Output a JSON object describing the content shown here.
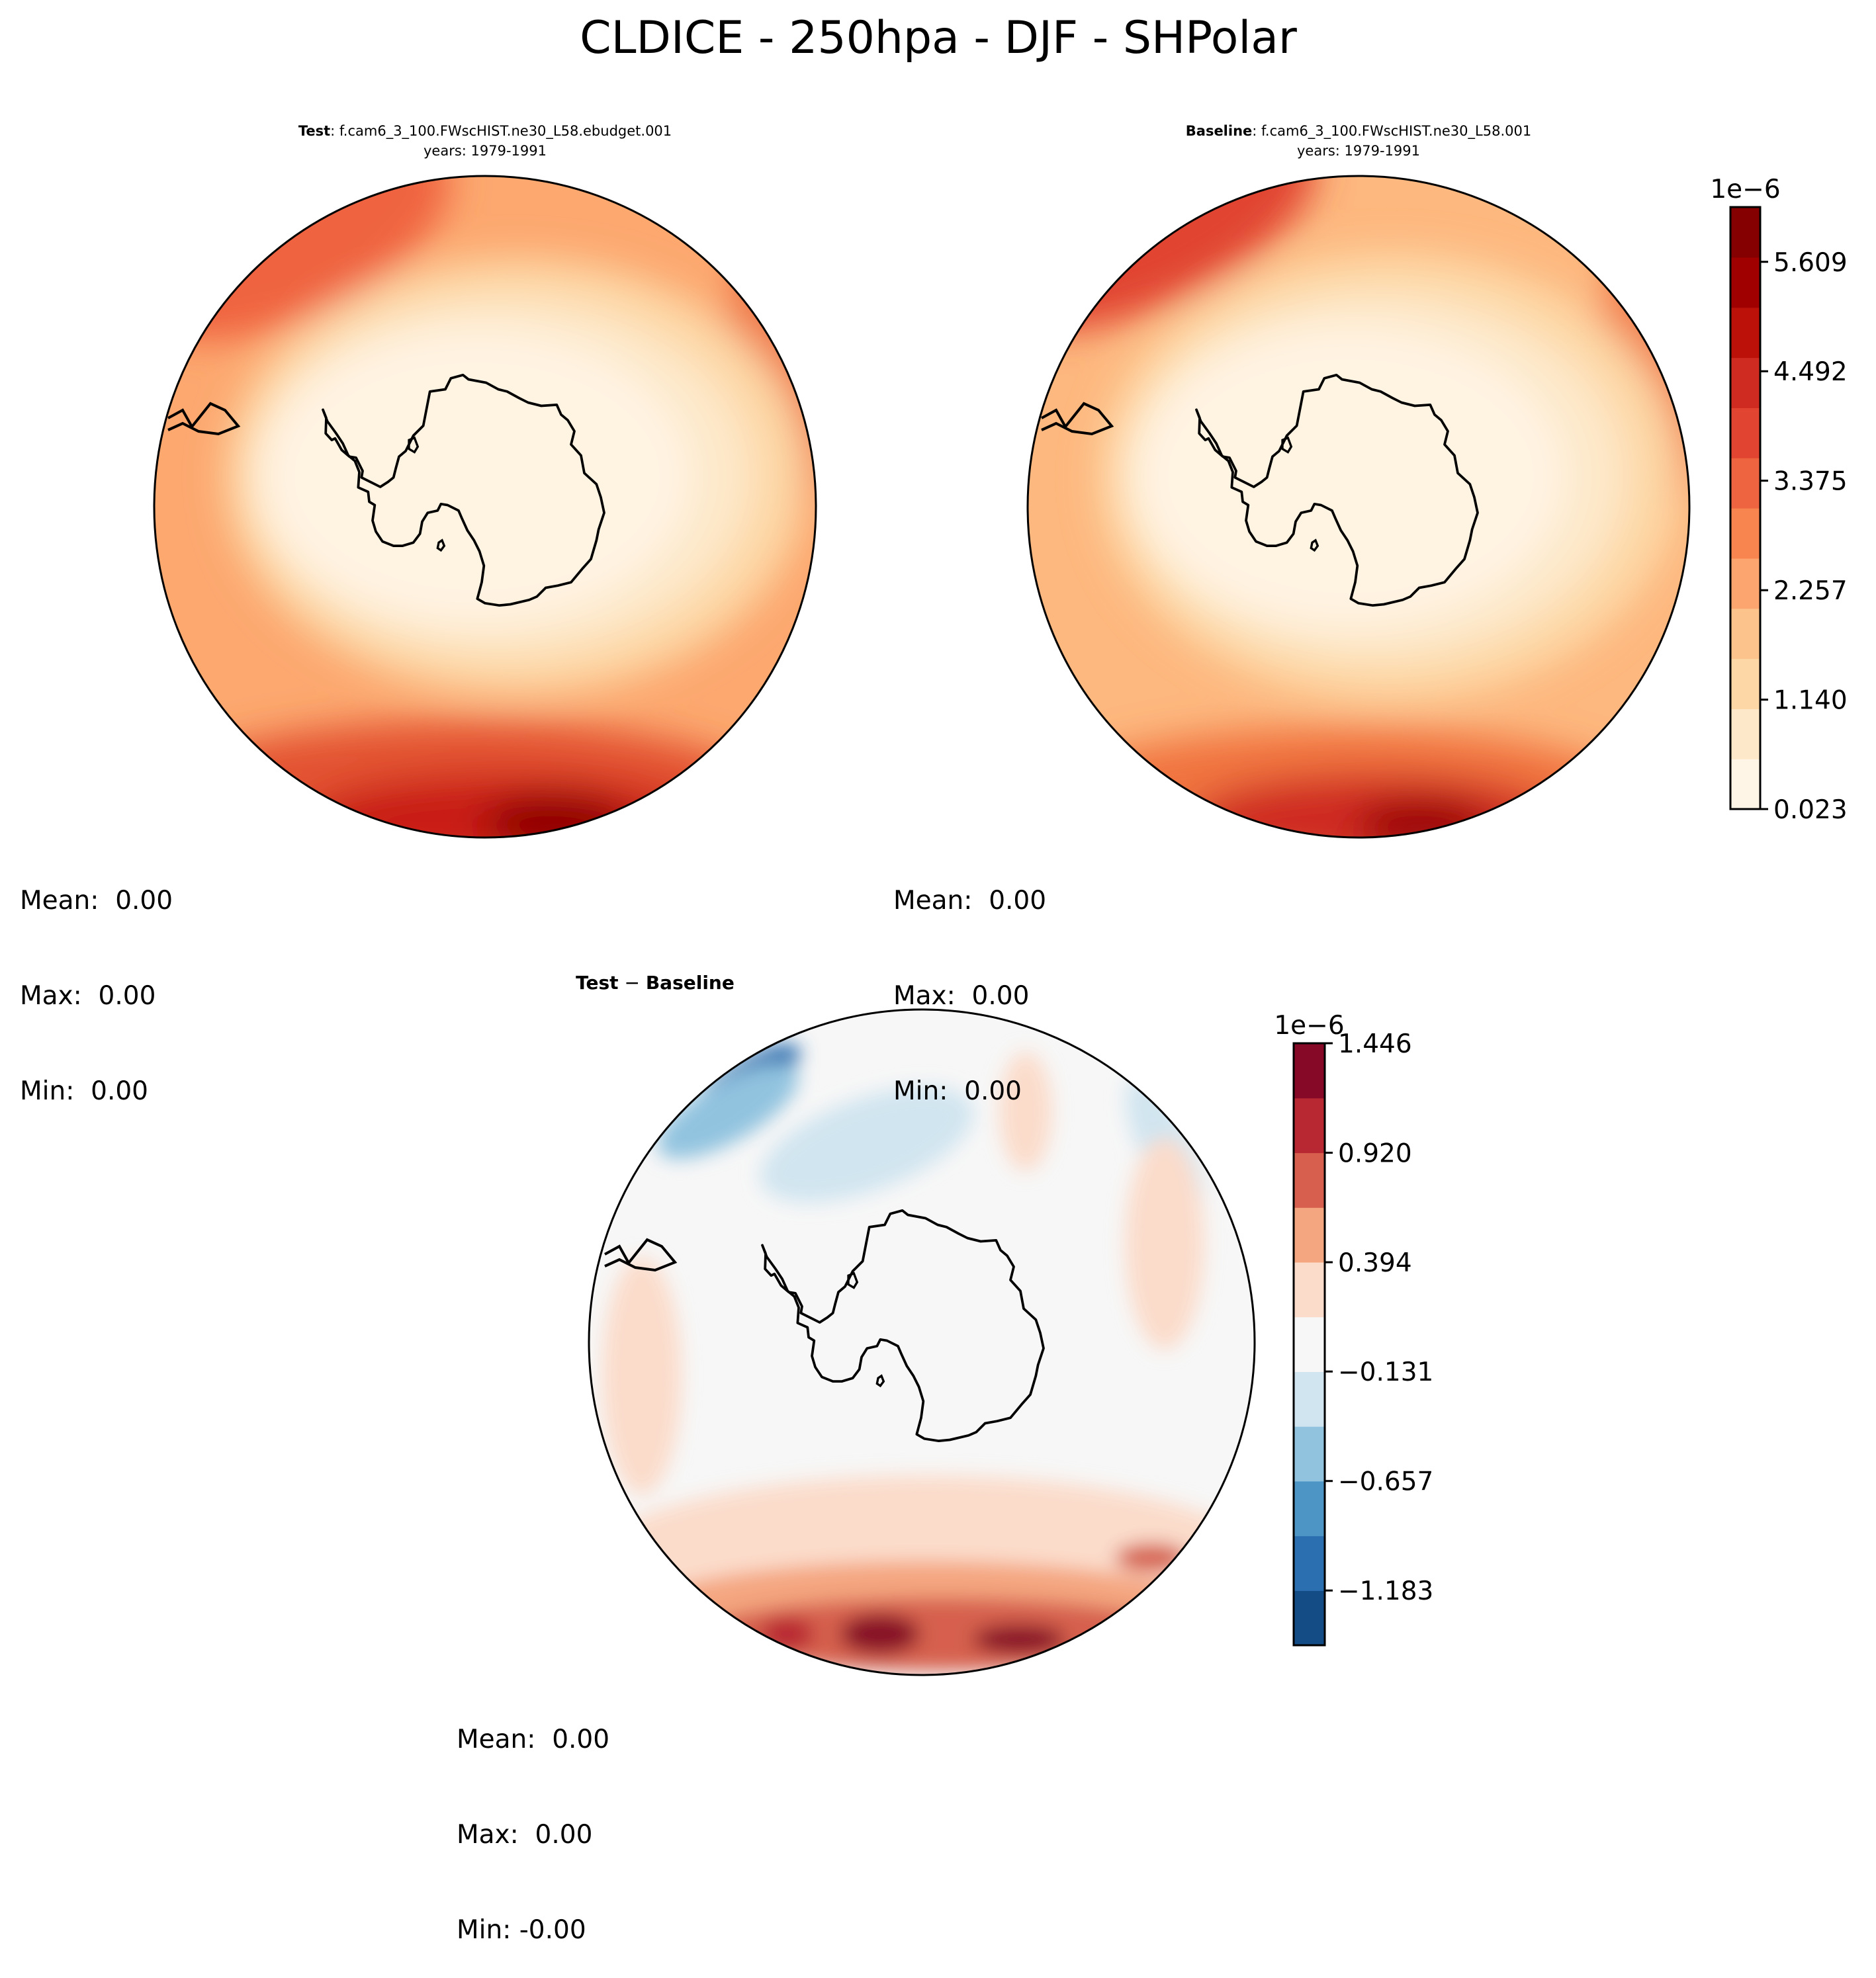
{
  "figure_title": "CLDICE - 250hpa - DJF - SHPolar",
  "chart_data": [
    {
      "type": "heatmap",
      "name": "test",
      "title_bold": "Test",
      "title_rest": ": f.cam6_3_100.FWscHIST.ne30_L58.ebudget.001",
      "subtitle": "years: 1979-1991",
      "projection": "south-polar-stereographic",
      "colormap": "OrRd",
      "stats": {
        "mean": "Mean:  0.00",
        "max": "Max:  0.00",
        "min": "Min:  0.00"
      },
      "field_description_levels": [
        0.023,
        0.582,
        1.14,
        1.699,
        2.257,
        2.816,
        3.375,
        3.933,
        4.492,
        5.05,
        5.609,
        6.168
      ]
    },
    {
      "type": "heatmap",
      "name": "baseline",
      "title_bold": "Baseline",
      "title_rest": ": f.cam6_3_100.FWscHIST.ne30_L58.001",
      "subtitle": "years: 1979-1991",
      "projection": "south-polar-stereographic",
      "colormap": "OrRd",
      "stats": {
        "mean": "Mean:  0.00",
        "max": "Max:  0.00",
        "min": "Min:  0.00"
      },
      "colorbar": {
        "exponent_label": "1e−6",
        "ticks": [
          "0.023",
          "1.140",
          "2.257",
          "3.375",
          "4.492",
          "5.609"
        ],
        "range": [
          0.023,
          6.168
        ],
        "colors": [
          "#fff5e6",
          "#fde8c9",
          "#fdd7a5",
          "#fdc38d",
          "#fca56e",
          "#f8844f",
          "#ef6440",
          "#e14531",
          "#cf2b20",
          "#bb1108",
          "#a00000",
          "#850000"
        ]
      }
    },
    {
      "type": "heatmap",
      "name": "difference",
      "title_bold": "Test",
      "title_sep": " − ",
      "title_bold2": "Baseline",
      "projection": "south-polar-stereographic",
      "colormap": "RdBu_r",
      "stats": {
        "mean": "Mean:  0.00",
        "max": "Max:  0.00",
        "min": "Min: -0.00"
      },
      "colorbar": {
        "exponent_label": "1e−6",
        "ticks": [
          "−1.183",
          "−0.657",
          "−0.131",
          "0.394",
          "0.920",
          "1.446"
        ],
        "range": [
          -1.446,
          1.446
        ],
        "colors": [
          "#144c86",
          "#2b6fb0",
          "#4c95c4",
          "#91c3df",
          "#d1e5f0",
          "#f7f7f7",
          "#fbdccb",
          "#f4a680",
          "#d6604d",
          "#b82832",
          "#860a28"
        ]
      }
    }
  ]
}
